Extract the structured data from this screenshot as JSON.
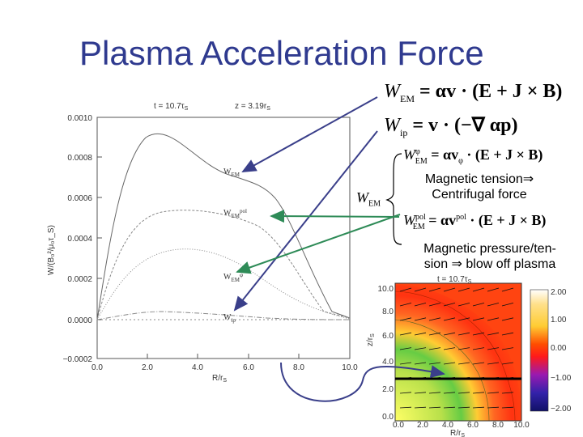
{
  "slide_title": "Plasma Acceleration Force",
  "equations": {
    "eq1_lhs": "W",
    "eq1_sub": "EM",
    "eq1_rhs": "= αv · (E + J × B)",
    "eq2_lhs": "W",
    "eq2_sub": "ip",
    "eq2_rhs": "= v · (−∇ αp)",
    "eq3_lhs": "W",
    "eq3_sub": "EM",
    "eq3_sup": "φ",
    "eq3_rhs": "= αv",
    "eq3_rhs_sub": "φ",
    "eq3_rhs_tail": "· (E + J × B)",
    "eq4_lhs": "W",
    "eq4_sub": "EM",
    "eq4_sup": "pol",
    "eq4_rhs": "= αv",
    "eq4_rhs_sup": "pol",
    "eq4_rhs_tail": "· (E + J × B)",
    "brace_label": "W",
    "brace_label_sub": "EM"
  },
  "notes": {
    "tension_line1": "Magnetic tension⇒",
    "tension_line2": "Centrifugal force",
    "pressure_line1": "Magnetic pressure/ten-",
    "pressure_line2": "sion ⇒ blow off plasma"
  },
  "plot_header": {
    "time": "t = 10.7τ",
    "time_sub": "S",
    "z": "z = 3.19r",
    "z_sub": "S"
  },
  "plot_ylabel": "W/(B₀²/μ₀τ_S)",
  "plot_xlabel": "R/r",
  "plot_xlabel_sub": "S",
  "curve_labels": {
    "em": "W",
    "em_sub": "EM",
    "em_pol": "W",
    "em_pol_sub": "EM",
    "em_pol_sup": "pol",
    "em_phi": "W",
    "em_phi_sub": "EM",
    "em_phi_sup": "φ",
    "ip": "W",
    "ip_sub": "ip"
  },
  "y_ticks": [
    "0.0010",
    "0.0008",
    "0.0006",
    "0.0004",
    "0.0002",
    "0.0000",
    "−0.0002"
  ],
  "x_ticks": [
    "0.0",
    "2.0",
    "4.0",
    "6.0",
    "8.0",
    "10.0"
  ],
  "map": {
    "title": "t = 10.7τ",
    "title_sub": "S",
    "y_ticks": [
      "10.0",
      "8.0",
      "6.0",
      "4.0",
      "2.0",
      "0.0"
    ],
    "x_ticks": [
      "0.0",
      "2.0",
      "4.0",
      "6.0",
      "8.0",
      "10.0"
    ],
    "xlabel": "R/r",
    "xlabel_sub": "S",
    "ylabel": "z/r",
    "ylabel_sub": "S",
    "colorbar_ticks": [
      "2.00",
      "1.00",
      "0.00",
      "−1.00",
      "−2.00"
    ]
  },
  "colors": {
    "title": "#2f3a8f",
    "arrow_dark": "#3a3f8a",
    "arrow_green": "#2e8b57"
  }
}
